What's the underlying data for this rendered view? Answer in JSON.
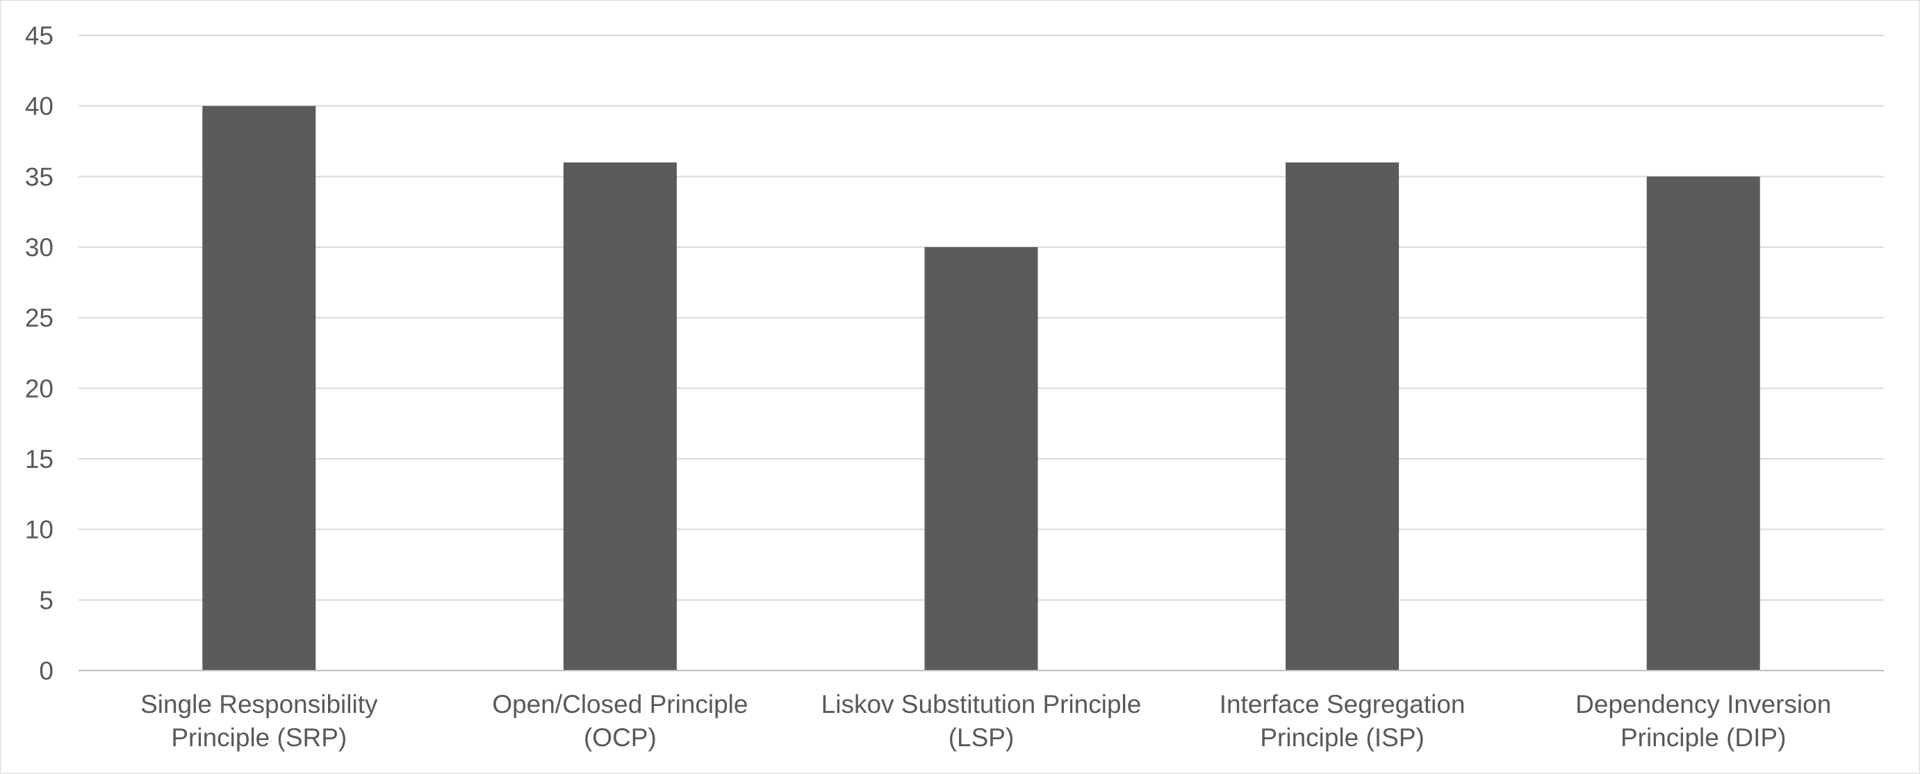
{
  "chart_data": {
    "type": "bar",
    "categories": [
      [
        "Single Responsibility",
        "Principle (SRP)"
      ],
      [
        "Open/Closed Principle",
        "(OCP)"
      ],
      [
        "Liskov Substitution Principle",
        "(LSP)"
      ],
      [
        "Interface Segregation",
        "Principle (ISP)"
      ],
      [
        "Dependency Inversion",
        "Principle (DIP)"
      ]
    ],
    "values": [
      40,
      36,
      30,
      36,
      35
    ],
    "title": "",
    "xlabel": "",
    "ylabel": "",
    "ylim": [
      0,
      45
    ],
    "yticks": [
      0,
      5,
      10,
      15,
      20,
      25,
      30,
      35,
      40,
      45
    ],
    "grid": true,
    "legend": "none",
    "colors": {
      "bar": "#5b5b5b",
      "grid": "#d9d9d9",
      "axis": "#bfbfbf",
      "text": "#595959"
    }
  }
}
